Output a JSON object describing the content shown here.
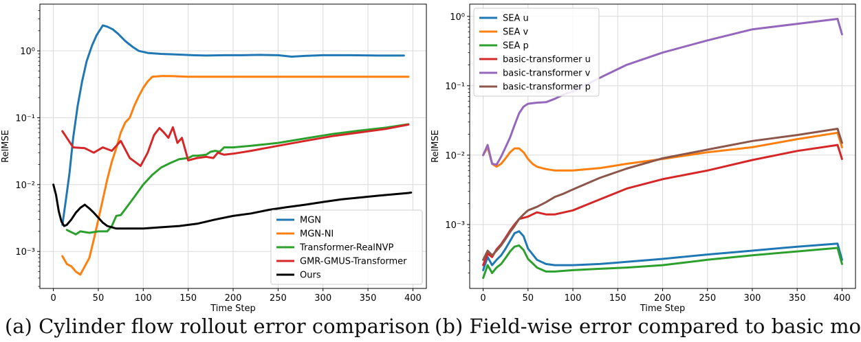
{
  "captions": {
    "a": "(a) Cylinder flow rollout error comparison",
    "b": "(b) Field-wise error compared to basic model"
  },
  "chart_data": [
    {
      "type": "line",
      "title": "",
      "xlabel": "Time Step",
      "ylabel": "RelMSE",
      "xscale": "linear",
      "yscale": "log",
      "xlim": [
        -15,
        415
      ],
      "ylim": [
        0.00028,
        5.0
      ],
      "xticks": [
        0,
        50,
        100,
        150,
        200,
        250,
        300,
        350,
        400
      ],
      "xtick_labels": [
        "0",
        "50",
        "100",
        "150",
        "200",
        "250",
        "300",
        "350",
        "400"
      ],
      "yticks": [
        0.001,
        0.01,
        0.1,
        1
      ],
      "ytick_labels": [
        "10⁻³",
        "10⁻²",
        "10⁻¹",
        "10⁰"
      ],
      "grid": true,
      "legend": "lower-right",
      "series": [
        {
          "name": "MGN",
          "color": "#1f77b4",
          "x": [
            10,
            14,
            18,
            22,
            27,
            32,
            37,
            43,
            48,
            55,
            60,
            66,
            72,
            80,
            88,
            95,
            105,
            120,
            140,
            155,
            170,
            190,
            210,
            230,
            250,
            265,
            280,
            300,
            330,
            360,
            390
          ],
          "y": [
            0.0025,
            0.006,
            0.015,
            0.05,
            0.15,
            0.35,
            0.7,
            1.2,
            1.7,
            2.4,
            2.3,
            2.1,
            1.8,
            1.4,
            1.15,
            1.0,
            0.93,
            0.9,
            0.88,
            0.86,
            0.85,
            0.86,
            0.86,
            0.87,
            0.86,
            0.82,
            0.84,
            0.86,
            0.86,
            0.85,
            0.85
          ]
        },
        {
          "name": "MGN-NI",
          "color": "#ff7f0e",
          "x": [
            10,
            15,
            20,
            25,
            30,
            35,
            40,
            45,
            50,
            55,
            60,
            65,
            70,
            75,
            80,
            85,
            90,
            95,
            100,
            105,
            110,
            120,
            130,
            150,
            170,
            200,
            250,
            300,
            350,
            395
          ],
          "y": [
            0.00085,
            0.00065,
            0.0006,
            0.0005,
            0.00045,
            0.0006,
            0.0008,
            0.0015,
            0.003,
            0.006,
            0.012,
            0.022,
            0.035,
            0.06,
            0.085,
            0.1,
            0.15,
            0.21,
            0.28,
            0.35,
            0.41,
            0.42,
            0.42,
            0.41,
            0.41,
            0.41,
            0.41,
            0.41,
            0.41,
            0.41
          ]
        },
        {
          "name": "Transformer-RealNVP",
          "color": "#2ca02c",
          "x": [
            15,
            25,
            30,
            40,
            50,
            60,
            65,
            70,
            75,
            80,
            90,
            100,
            110,
            120,
            130,
            140,
            150,
            155,
            160,
            170,
            175,
            180,
            185,
            190,
            200,
            220,
            250,
            280,
            310,
            340,
            370,
            395
          ],
          "y": [
            0.0021,
            0.0018,
            0.002,
            0.0019,
            0.002,
            0.002,
            0.0024,
            0.0034,
            0.0035,
            0.0043,
            0.0065,
            0.01,
            0.014,
            0.018,
            0.021,
            0.024,
            0.025,
            0.027,
            0.027,
            0.028,
            0.031,
            0.032,
            0.031,
            0.036,
            0.036,
            0.038,
            0.042,
            0.049,
            0.057,
            0.064,
            0.071,
            0.08
          ]
        },
        {
          "name": "GMR-GMUS-Transformer",
          "color": "#d62728",
          "x": [
            10,
            22,
            35,
            45,
            55,
            65,
            75,
            85,
            97,
            105,
            112,
            118,
            123,
            128,
            133,
            138,
            143,
            150,
            160,
            170,
            178,
            183,
            190,
            200,
            220,
            250,
            280,
            310,
            340,
            370,
            395
          ],
          "y": [
            0.063,
            0.036,
            0.035,
            0.03,
            0.036,
            0.032,
            0.045,
            0.025,
            0.019,
            0.03,
            0.055,
            0.07,
            0.06,
            0.05,
            0.072,
            0.042,
            0.05,
            0.023,
            0.025,
            0.026,
            0.025,
            0.03,
            0.028,
            0.029,
            0.032,
            0.038,
            0.045,
            0.053,
            0.06,
            0.068,
            0.079
          ]
        },
        {
          "name": "Ours",
          "color": "#000000",
          "x": [
            0,
            3,
            6,
            9,
            12,
            15,
            20,
            25,
            30,
            35,
            40,
            45,
            50,
            55,
            60,
            70,
            80,
            90,
            100,
            120,
            140,
            160,
            180,
            200,
            220,
            240,
            260,
            280,
            300,
            320,
            340,
            360,
            380,
            395,
            398
          ],
          "y": [
            0.01,
            0.007,
            0.004,
            0.0028,
            0.0024,
            0.0025,
            0.003,
            0.0038,
            0.0045,
            0.005,
            0.0044,
            0.0038,
            0.0032,
            0.0027,
            0.0024,
            0.0022,
            0.0022,
            0.0022,
            0.0022,
            0.0023,
            0.0024,
            0.0026,
            0.003,
            0.0034,
            0.0037,
            0.0042,
            0.0046,
            0.005,
            0.0055,
            0.006,
            0.0064,
            0.0068,
            0.0072,
            0.0075,
            0.0076
          ]
        }
      ]
    },
    {
      "type": "line",
      "title": "",
      "xlabel": "Time Step",
      "ylabel": "RelMSE",
      "xscale": "linear",
      "yscale": "log",
      "xlim": [
        -15,
        415
      ],
      "ylim": [
        0.00012,
        1.5
      ],
      "xticks": [
        0,
        50,
        100,
        150,
        200,
        250,
        300,
        350,
        400
      ],
      "xtick_labels": [
        "0",
        "50",
        "100",
        "150",
        "200",
        "250",
        "300",
        "350",
        "400"
      ],
      "yticks": [
        0.001,
        0.01,
        0.1,
        1
      ],
      "ytick_labels": [
        "10⁻³",
        "10⁻²",
        "10⁻¹",
        "10⁰"
      ],
      "grid": true,
      "legend": "upper-left",
      "series": [
        {
          "name": "SEA u",
          "color": "#1f77b4",
          "x": [
            0,
            5,
            10,
            15,
            20,
            25,
            30,
            35,
            40,
            45,
            50,
            60,
            70,
            80,
            100,
            130,
            160,
            200,
            250,
            300,
            350,
            395,
            400
          ],
          "y": [
            0.00022,
            0.00034,
            0.00026,
            0.00031,
            0.00036,
            0.00045,
            0.00058,
            0.00075,
            0.0008,
            0.00068,
            0.00045,
            0.00031,
            0.00027,
            0.00026,
            0.00026,
            0.00027,
            0.00029,
            0.00032,
            0.00037,
            0.00042,
            0.00048,
            0.00053,
            0.00031
          ]
        },
        {
          "name": "SEA v",
          "color": "#ff7f0e",
          "x": [
            0,
            5,
            10,
            15,
            20,
            25,
            30,
            35,
            40,
            45,
            50,
            55,
            60,
            70,
            80,
            90,
            100,
            130,
            160,
            200,
            250,
            300,
            350,
            395,
            400
          ],
          "y": [
            0.01,
            0.013,
            0.0075,
            0.0068,
            0.0075,
            0.009,
            0.011,
            0.0125,
            0.0125,
            0.011,
            0.0088,
            0.0075,
            0.0068,
            0.0063,
            0.006,
            0.006,
            0.006,
            0.0065,
            0.0075,
            0.0088,
            0.011,
            0.013,
            0.017,
            0.021,
            0.013
          ]
        },
        {
          "name": "SEA p",
          "color": "#2ca02c",
          "x": [
            0,
            5,
            10,
            15,
            20,
            25,
            30,
            35,
            40,
            45,
            50,
            60,
            70,
            80,
            100,
            130,
            160,
            200,
            250,
            300,
            350,
            395,
            400
          ],
          "y": [
            0.00017,
            0.00026,
            0.0002,
            0.00024,
            0.00027,
            0.00033,
            0.00041,
            0.00048,
            0.0005,
            0.00043,
            0.00032,
            0.00024,
            0.00021,
            0.00021,
            0.00022,
            0.00023,
            0.00024,
            0.00026,
            0.00031,
            0.00036,
            0.00041,
            0.00046,
            0.00027
          ]
        },
        {
          "name": "basic-transformer u",
          "color": "#d62728",
          "x": [
            0,
            5,
            10,
            15,
            20,
            25,
            30,
            35,
            40,
            45,
            50,
            55,
            60,
            70,
            80,
            100,
            130,
            160,
            200,
            250,
            300,
            350,
            395,
            400
          ],
          "y": [
            0.00026,
            0.00038,
            0.00034,
            0.00044,
            0.00052,
            0.00065,
            0.00082,
            0.001,
            0.0012,
            0.00125,
            0.0013,
            0.0014,
            0.0015,
            0.0014,
            0.0014,
            0.0016,
            0.0023,
            0.0033,
            0.0045,
            0.006,
            0.0085,
            0.0115,
            0.014,
            0.0088
          ]
        },
        {
          "name": "basic-transformer v",
          "color": "#9467bd",
          "x": [
            0,
            5,
            10,
            15,
            20,
            25,
            30,
            35,
            40,
            45,
            50,
            60,
            70,
            80,
            90,
            100,
            130,
            160,
            200,
            250,
            300,
            350,
            395,
            400
          ],
          "y": [
            0.01,
            0.014,
            0.0075,
            0.0073,
            0.0095,
            0.013,
            0.018,
            0.027,
            0.04,
            0.05,
            0.055,
            0.057,
            0.058,
            0.065,
            0.075,
            0.083,
            0.13,
            0.2,
            0.3,
            0.45,
            0.65,
            0.78,
            0.92,
            0.55
          ]
        },
        {
          "name": "basic-transformer p",
          "color": "#8c564b",
          "x": [
            0,
            5,
            10,
            15,
            20,
            25,
            30,
            35,
            40,
            45,
            50,
            60,
            70,
            80,
            90,
            100,
            130,
            160,
            200,
            250,
            300,
            350,
            395,
            400
          ],
          "y": [
            0.00031,
            0.00042,
            0.00036,
            0.00042,
            0.0005,
            0.00062,
            0.00078,
            0.00095,
            0.0012,
            0.0014,
            0.0016,
            0.0018,
            0.0021,
            0.0025,
            0.0028,
            0.0032,
            0.0047,
            0.0064,
            0.009,
            0.012,
            0.016,
            0.0195,
            0.024,
            0.015
          ]
        }
      ]
    }
  ]
}
